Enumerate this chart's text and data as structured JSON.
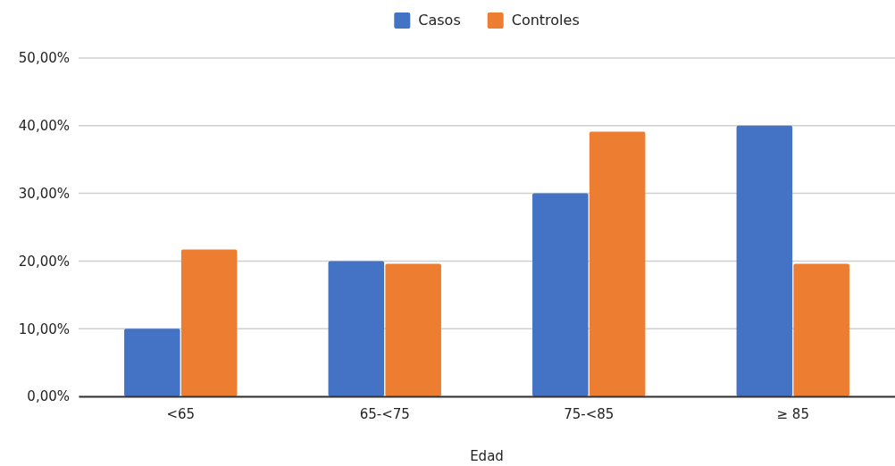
{
  "chart_data": {
    "type": "bar",
    "xlabel": "Edad",
    "categories": [
      "<65",
      "65-<75",
      "75-<85",
      "≥ 85"
    ],
    "series": [
      {
        "name": "Casos",
        "color": "#4472c4",
        "values": [
          10,
          20,
          30,
          40
        ]
      },
      {
        "name": "Controles",
        "color": "#ed7d31",
        "values": [
          21.7,
          19.6,
          39.1,
          19.6
        ]
      }
    ],
    "ylim": [
      0,
      50
    ],
    "yticks": [
      {
        "value": 0,
        "label": "0,00%"
      },
      {
        "value": 10,
        "label": "10,00%"
      },
      {
        "value": 20,
        "label": "20,00%"
      },
      {
        "value": 30,
        "label": "30,00%"
      },
      {
        "value": 40,
        "label": "40,00%"
      },
      {
        "value": 50,
        "label": "50,00%"
      }
    ],
    "grid": "y",
    "legend": "top"
  }
}
